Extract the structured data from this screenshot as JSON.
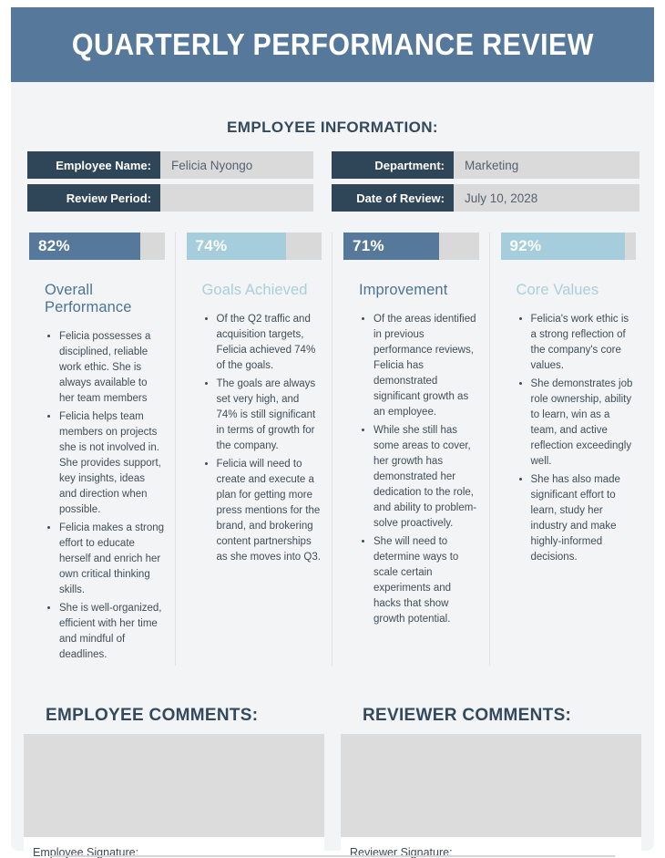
{
  "header": {
    "title": "QUARTERLY PERFORMANCE REVIEW"
  },
  "employee_info": {
    "heading": "EMPLOYEE INFORMATION:",
    "fields": [
      {
        "label": "Employee Name:",
        "value": "Felicia Nyongo"
      },
      {
        "label": "Department:",
        "value": "Marketing"
      },
      {
        "label": "Review Period:",
        "value": ""
      },
      {
        "label": "Date of Review:",
        "value": "July 10, 2028"
      }
    ]
  },
  "metrics": [
    {
      "percent_label": "82%",
      "percent_value": 82,
      "title": "Overall Performance",
      "bullets": [
        "Felicia possesses a disciplined, reliable work ethic. She is always available to her team members",
        "Felicia helps team members on projects she is not involved in. She provides support, key insights, ideas and direction when possible.",
        "Felicia makes a strong effort to educate herself and enrich her own critical thinking skills.",
        "She is well-organized, efficient with her time and mindful of deadlines."
      ]
    },
    {
      "percent_label": "74%",
      "percent_value": 74,
      "title": "Goals Achieved",
      "bullets": [
        "Of the Q2 traffic and acquisition targets, Felicia achieved 74% of the goals.",
        "The goals are always set very high, and 74% is still significant in terms of growth for the company.",
        "Felicia will need to create and execute a plan for getting more press mentions for the brand, and brokering content partnerships as she moves into Q3."
      ]
    },
    {
      "percent_label": "71%",
      "percent_value": 71,
      "title": "Improvement",
      "bullets": [
        "Of the areas identified in previous performance reviews, Felicia has demonstrated significant growth as an employee.",
        "While she still has some areas to cover, her growth has demonstrated her dedication to the role, and ability to problem-solve proactively.",
        "She will need to determine ways to scale certain experiments and hacks that show growth potential."
      ]
    },
    {
      "percent_label": "92%",
      "percent_value": 92,
      "title": "Core Values",
      "bullets": [
        "Felicia's work ethic is a strong reflection of the company's core values.",
        "She demonstrates job role ownership, ability to learn, win as a team, and active reflection exceedingly well.",
        "She has also made significant effort to learn, study her industry and make highly-informed decisions."
      ]
    }
  ],
  "comments": {
    "employee_heading": "EMPLOYEE COMMENTS:",
    "reviewer_heading": "REVIEWER COMMENTS:",
    "employee_signature_label": "Employee Signature:",
    "reviewer_signature_label": "Reviewer Signature:"
  },
  "colors": {
    "header_background": "#56789b",
    "dark_bar_fill": "#56789b",
    "light_bar_fill": "#a5cddb",
    "bar_track": "#d9d9d9",
    "label_box": "#2f4558",
    "value_box": "#dadada",
    "heading_text": "#33495c",
    "body_text": "#3f4e59",
    "page_background": "#f3f4f5"
  }
}
